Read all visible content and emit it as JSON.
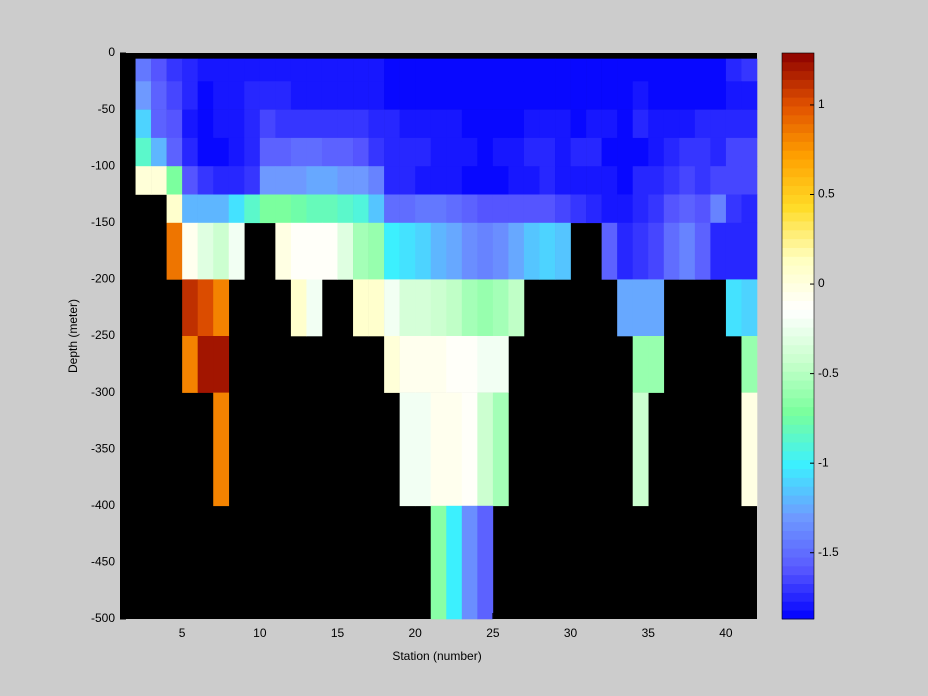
{
  "chart_data": {
    "type": "heatmap",
    "xlabel": "Station (number)",
    "ylabel": "Depth (meter)",
    "x": [
      2,
      3,
      4,
      5,
      6,
      7,
      8,
      9,
      10,
      11,
      12,
      13,
      14,
      15,
      16,
      17,
      18,
      19,
      20,
      21,
      22,
      23,
      24,
      25,
      26,
      27,
      28,
      29,
      30,
      31,
      32,
      33,
      34,
      35,
      36,
      37,
      38,
      39,
      40,
      41,
      42
    ],
    "y": [
      -5,
      -25,
      -50,
      -75,
      -100,
      -125,
      -150,
      -200,
      -250,
      -300,
      -400,
      -500
    ],
    "values": [
      [
        -1.45,
        -1.6,
        -1.7,
        -1.75,
        -1.8,
        -1.8,
        -1.8,
        -1.8,
        -1.8,
        -1.8,
        -1.8,
        -1.8,
        -1.8,
        -1.8,
        -1.8,
        -1.8,
        -1.85,
        -1.85,
        -1.85,
        -1.85,
        -1.85,
        -1.85,
        -1.85,
        -1.85,
        -1.85,
        -1.85,
        -1.85,
        -1.85,
        -1.85,
        -1.85,
        -1.85,
        -1.85,
        -1.85,
        -1.85,
        -1.85,
        -1.85,
        -1.85,
        -1.85,
        -1.75,
        -1.7
      ],
      [
        -1.3,
        -1.55,
        -1.65,
        -1.75,
        -1.85,
        -1.8,
        -1.8,
        -1.75,
        -1.75,
        -1.75,
        -1.8,
        -1.8,
        -1.8,
        -1.8,
        -1.8,
        -1.8,
        -1.85,
        -1.85,
        -1.85,
        -1.85,
        -1.85,
        -1.85,
        -1.87,
        -1.87,
        -1.85,
        -1.85,
        -1.85,
        -1.85,
        -1.85,
        -1.85,
        -1.85,
        -1.85,
        -1.8,
        -1.85,
        -1.85,
        -1.85,
        -1.85,
        -1.85,
        -1.8,
        -1.8
      ],
      [
        -1.1,
        -1.55,
        -1.6,
        -1.8,
        -1.85,
        -1.8,
        -1.8,
        -1.75,
        -1.65,
        -1.7,
        -1.7,
        -1.7,
        -1.7,
        -1.7,
        -1.7,
        -1.75,
        -1.75,
        -1.8,
        -1.8,
        -1.8,
        -1.8,
        -1.85,
        -1.87,
        -1.85,
        -1.85,
        -1.8,
        -1.8,
        -1.8,
        -1.85,
        -1.8,
        -1.8,
        -1.85,
        -1.75,
        -1.8,
        -1.8,
        -1.8,
        -1.75,
        -1.75,
        -1.75,
        -1.75
      ],
      [
        -0.85,
        -1.2,
        -1.55,
        -1.75,
        -1.85,
        -1.85,
        -1.8,
        -1.75,
        -1.55,
        -1.55,
        -1.5,
        -1.5,
        -1.55,
        -1.55,
        -1.6,
        -1.7,
        -1.75,
        -1.75,
        -1.75,
        -1.8,
        -1.8,
        -1.8,
        -1.85,
        -1.8,
        -1.8,
        -1.75,
        -1.75,
        -1.8,
        -1.75,
        -1.75,
        -1.85,
        -1.85,
        -1.85,
        -1.8,
        -1.75,
        -1.7,
        -1.7,
        -1.75,
        -1.65,
        -1.65
      ],
      [
        0.05,
        0.05,
        -0.7,
        -1.6,
        -1.7,
        -1.75,
        -1.75,
        -1.7,
        -1.3,
        -1.3,
        -1.3,
        -1.25,
        -1.25,
        -1.3,
        -1.3,
        -1.4,
        -1.75,
        -1.75,
        -1.8,
        -1.8,
        -1.8,
        -1.85,
        -1.85,
        -1.85,
        -1.8,
        -1.8,
        -1.75,
        -1.8,
        -1.8,
        -1.8,
        -1.8,
        -1.85,
        -1.75,
        -1.75,
        -1.7,
        -1.65,
        -1.7,
        -1.65,
        -1.65,
        -1.65
      ],
      [
        null,
        null,
        0.1,
        -1.2,
        -1.2,
        -1.2,
        -1.05,
        -0.85,
        -0.7,
        -0.7,
        -0.75,
        -0.8,
        -0.8,
        -0.85,
        -0.9,
        -1.15,
        -1.5,
        -1.5,
        -1.45,
        -1.45,
        -1.5,
        -1.55,
        -1.6,
        -1.6,
        -1.6,
        -1.6,
        -1.6,
        -1.65,
        -1.7,
        -1.75,
        -1.8,
        -1.8,
        -1.75,
        -1.7,
        -1.6,
        -1.55,
        -1.6,
        -1.4,
        -1.7,
        -1.75
      ],
      [
        null,
        null,
        0.85,
        -0.05,
        -0.3,
        -0.4,
        -0.2,
        null,
        null,
        0.0,
        -0.1,
        -0.1,
        -0.1,
        -0.3,
        -0.55,
        -0.6,
        -1.0,
        -1.05,
        -1.1,
        -1.2,
        -1.25,
        -1.35,
        -1.4,
        -1.35,
        -1.25,
        -1.15,
        -1.1,
        -1.15,
        null,
        null,
        -1.55,
        -1.75,
        -1.7,
        -1.65,
        -1.5,
        -1.4,
        -1.55,
        -1.75,
        -1.75,
        -1.75
      ],
      [
        null,
        null,
        null,
        1.1,
        1.0,
        0.8,
        null,
        null,
        null,
        null,
        0.1,
        -0.2,
        null,
        null,
        0.1,
        0.1,
        -0.2,
        -0.35,
        -0.35,
        -0.4,
        -0.45,
        -0.55,
        -0.6,
        -0.55,
        -0.45,
        null,
        null,
        null,
        null,
        null,
        null,
        -1.25,
        -1.25,
        -1.25,
        null,
        null,
        null,
        null,
        -1.05,
        -1.1
      ],
      [
        null,
        null,
        null,
        0.8,
        1.2,
        1.2,
        null,
        null,
        null,
        null,
        null,
        null,
        null,
        null,
        null,
        null,
        0.05,
        -0.05,
        -0.05,
        -0.05,
        -0.1,
        -0.1,
        -0.2,
        -0.2,
        null,
        null,
        null,
        null,
        null,
        null,
        null,
        null,
        -0.6,
        -0.6,
        null,
        null,
        null,
        null,
        null,
        -0.6
      ],
      [
        null,
        null,
        null,
        null,
        null,
        0.8,
        null,
        null,
        null,
        null,
        null,
        null,
        null,
        null,
        null,
        null,
        null,
        -0.2,
        -0.2,
        -0.05,
        -0.05,
        -0.1,
        -0.4,
        -0.55,
        null,
        null,
        null,
        null,
        null,
        null,
        null,
        null,
        -0.4,
        null,
        null,
        null,
        null,
        null,
        null,
        0.0
      ],
      [
        null,
        null,
        null,
        null,
        null,
        null,
        null,
        null,
        null,
        null,
        null,
        null,
        null,
        null,
        null,
        null,
        null,
        null,
        null,
        -0.65,
        -1.0,
        -1.35,
        -1.55,
        null,
        null,
        null,
        null,
        null,
        null,
        null,
        null,
        null,
        null,
        null,
        null,
        null,
        null,
        null,
        null,
        null
      ]
    ],
    "xlim": [
      1,
      42
    ],
    "xticks": [
      5,
      10,
      15,
      20,
      25,
      30,
      35,
      40
    ],
    "ylim": [
      -500,
      0
    ],
    "yticks": [
      0,
      -50,
      -100,
      -150,
      -200,
      -250,
      -300,
      -350,
      -400,
      -450,
      -500
    ],
    "clim": [
      -1.87,
      1.29
    ],
    "cticks": [
      -1.5,
      -1,
      -0.5,
      0,
      0.5,
      1
    ],
    "colormap": [
      "#0000ff",
      "#5a5aff",
      "#6e9bff",
      "#3cf0ff",
      "#78ff9c",
      "#c8ffcc",
      "#ffffff",
      "#ffffc0",
      "#ffdc28",
      "#ffa000",
      "#e05000",
      "#8c0000"
    ],
    "nan_color": "#000000"
  }
}
